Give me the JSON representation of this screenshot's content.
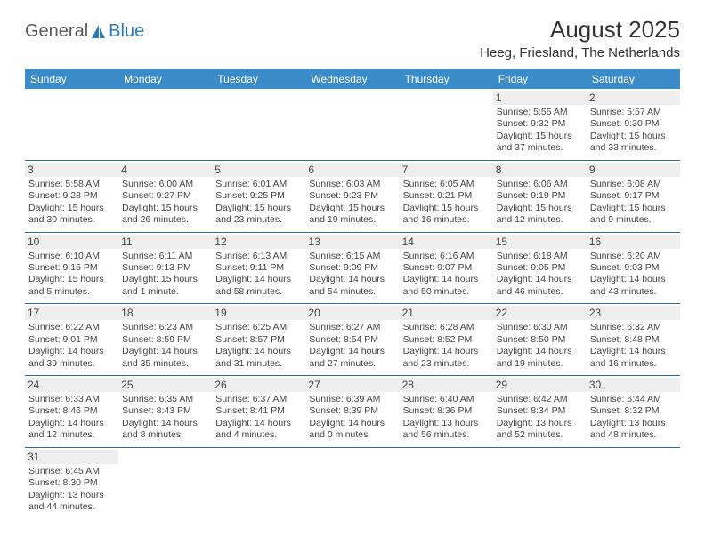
{
  "logo": {
    "text1": "General",
    "text2": "Blue"
  },
  "title": "August 2025",
  "location": "Heeg, Friesland, The Netherlands",
  "colors": {
    "header_bg": "#3b8bc8",
    "header_fg": "#ffffff",
    "daynum_bg": "#eeeeee",
    "row_border": "#2a6aa8",
    "logo_blue": "#2a7ab9",
    "text": "#333333"
  },
  "weekdays": [
    "Sunday",
    "Monday",
    "Tuesday",
    "Wednesday",
    "Thursday",
    "Friday",
    "Saturday"
  ],
  "weeks": [
    [
      null,
      null,
      null,
      null,
      null,
      {
        "d": "1",
        "sr": "5:55 AM",
        "ss": "9:32 PM",
        "dl": "15 hours and 37 minutes."
      },
      {
        "d": "2",
        "sr": "5:57 AM",
        "ss": "9:30 PM",
        "dl": "15 hours and 33 minutes."
      }
    ],
    [
      {
        "d": "3",
        "sr": "5:58 AM",
        "ss": "9:28 PM",
        "dl": "15 hours and 30 minutes."
      },
      {
        "d": "4",
        "sr": "6:00 AM",
        "ss": "9:27 PM",
        "dl": "15 hours and 26 minutes."
      },
      {
        "d": "5",
        "sr": "6:01 AM",
        "ss": "9:25 PM",
        "dl": "15 hours and 23 minutes."
      },
      {
        "d": "6",
        "sr": "6:03 AM",
        "ss": "9:23 PM",
        "dl": "15 hours and 19 minutes."
      },
      {
        "d": "7",
        "sr": "6:05 AM",
        "ss": "9:21 PM",
        "dl": "15 hours and 16 minutes."
      },
      {
        "d": "8",
        "sr": "6:06 AM",
        "ss": "9:19 PM",
        "dl": "15 hours and 12 minutes."
      },
      {
        "d": "9",
        "sr": "6:08 AM",
        "ss": "9:17 PM",
        "dl": "15 hours and 9 minutes."
      }
    ],
    [
      {
        "d": "10",
        "sr": "6:10 AM",
        "ss": "9:15 PM",
        "dl": "15 hours and 5 minutes."
      },
      {
        "d": "11",
        "sr": "6:11 AM",
        "ss": "9:13 PM",
        "dl": "15 hours and 1 minute."
      },
      {
        "d": "12",
        "sr": "6:13 AM",
        "ss": "9:11 PM",
        "dl": "14 hours and 58 minutes."
      },
      {
        "d": "13",
        "sr": "6:15 AM",
        "ss": "9:09 PM",
        "dl": "14 hours and 54 minutes."
      },
      {
        "d": "14",
        "sr": "6:16 AM",
        "ss": "9:07 PM",
        "dl": "14 hours and 50 minutes."
      },
      {
        "d": "15",
        "sr": "6:18 AM",
        "ss": "9:05 PM",
        "dl": "14 hours and 46 minutes."
      },
      {
        "d": "16",
        "sr": "6:20 AM",
        "ss": "9:03 PM",
        "dl": "14 hours and 43 minutes."
      }
    ],
    [
      {
        "d": "17",
        "sr": "6:22 AM",
        "ss": "9:01 PM",
        "dl": "14 hours and 39 minutes."
      },
      {
        "d": "18",
        "sr": "6:23 AM",
        "ss": "8:59 PM",
        "dl": "14 hours and 35 minutes."
      },
      {
        "d": "19",
        "sr": "6:25 AM",
        "ss": "8:57 PM",
        "dl": "14 hours and 31 minutes."
      },
      {
        "d": "20",
        "sr": "6:27 AM",
        "ss": "8:54 PM",
        "dl": "14 hours and 27 minutes."
      },
      {
        "d": "21",
        "sr": "6:28 AM",
        "ss": "8:52 PM",
        "dl": "14 hours and 23 minutes."
      },
      {
        "d": "22",
        "sr": "6:30 AM",
        "ss": "8:50 PM",
        "dl": "14 hours and 19 minutes."
      },
      {
        "d": "23",
        "sr": "6:32 AM",
        "ss": "8:48 PM",
        "dl": "14 hours and 16 minutes."
      }
    ],
    [
      {
        "d": "24",
        "sr": "6:33 AM",
        "ss": "8:46 PM",
        "dl": "14 hours and 12 minutes."
      },
      {
        "d": "25",
        "sr": "6:35 AM",
        "ss": "8:43 PM",
        "dl": "14 hours and 8 minutes."
      },
      {
        "d": "26",
        "sr": "6:37 AM",
        "ss": "8:41 PM",
        "dl": "14 hours and 4 minutes."
      },
      {
        "d": "27",
        "sr": "6:39 AM",
        "ss": "8:39 PM",
        "dl": "14 hours and 0 minutes."
      },
      {
        "d": "28",
        "sr": "6:40 AM",
        "ss": "8:36 PM",
        "dl": "13 hours and 56 minutes."
      },
      {
        "d": "29",
        "sr": "6:42 AM",
        "ss": "8:34 PM",
        "dl": "13 hours and 52 minutes."
      },
      {
        "d": "30",
        "sr": "6:44 AM",
        "ss": "8:32 PM",
        "dl": "13 hours and 48 minutes."
      }
    ],
    [
      {
        "d": "31",
        "sr": "6:45 AM",
        "ss": "8:30 PM",
        "dl": "13 hours and 44 minutes."
      },
      null,
      null,
      null,
      null,
      null,
      null
    ]
  ],
  "labels": {
    "sunrise": "Sunrise:",
    "sunset": "Sunset:",
    "daylight": "Daylight:"
  }
}
